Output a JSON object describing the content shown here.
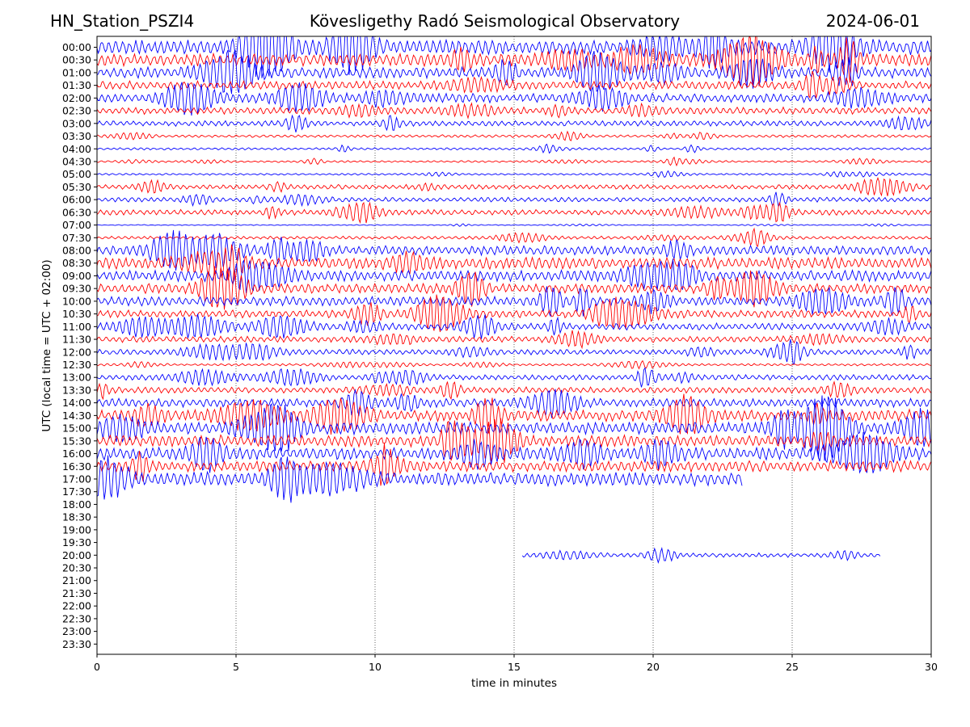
{
  "header": {
    "station": "HN_Station_PSZI4",
    "observatory": "Kövesligethy Radó Seismological Observatory",
    "date": "2024-06-01"
  },
  "chart_data": {
    "type": "line",
    "title": "Kövesligethy Radó Seismological Observatory",
    "xlabel": "time in minutes",
    "ylabel": "UTC (local time = UTC + 02:00)",
    "xlim": [
      0,
      30
    ],
    "xticks": [
      0,
      5,
      10,
      15,
      20,
      25,
      30
    ],
    "grid": "vertical dotted lines at x ticks",
    "colors": [
      "#0000ff",
      "#ff0000"
    ],
    "row_labels": [
      "00:00",
      "00:30",
      "01:00",
      "01:30",
      "02:00",
      "02:30",
      "03:00",
      "03:30",
      "04:00",
      "04:30",
      "05:00",
      "05:30",
      "06:00",
      "06:30",
      "07:00",
      "07:30",
      "08:00",
      "08:30",
      "09:00",
      "09:30",
      "10:00",
      "10:30",
      "11:00",
      "11:30",
      "12:00",
      "12:30",
      "13:00",
      "13:30",
      "14:00",
      "14:30",
      "15:00",
      "15:30",
      "16:00",
      "16:30",
      "17:00",
      "17:30",
      "18:00",
      "18:30",
      "19:00",
      "19:30",
      "20:00",
      "20:30",
      "21:00",
      "21:30",
      "22:00",
      "22:30",
      "23:00",
      "23:30"
    ],
    "rows": [
      {
        "label": "00:00",
        "color": "#0000ff",
        "amplitude": 0.95,
        "start": 0,
        "end": 30
      },
      {
        "label": "00:30",
        "color": "#ff0000",
        "amplitude": 0.8,
        "start": 0,
        "end": 30
      },
      {
        "label": "01:00",
        "color": "#0000ff",
        "amplitude": 0.7,
        "start": 0,
        "end": 30
      },
      {
        "label": "01:30",
        "color": "#ff0000",
        "amplitude": 0.55,
        "start": 0,
        "end": 30
      },
      {
        "label": "02:00",
        "color": "#0000ff",
        "amplitude": 0.6,
        "start": 0,
        "end": 30
      },
      {
        "label": "02:30",
        "color": "#ff0000",
        "amplitude": 0.45,
        "start": 0,
        "end": 30
      },
      {
        "label": "03:00",
        "color": "#0000ff",
        "amplitude": 0.35,
        "start": 0,
        "end": 30
      },
      {
        "label": "03:30",
        "color": "#ff0000",
        "amplitude": 0.18,
        "start": 0,
        "end": 30
      },
      {
        "label": "04:00",
        "color": "#0000ff",
        "amplitude": 0.15,
        "start": 0,
        "end": 30
      },
      {
        "label": "04:30",
        "color": "#ff0000",
        "amplitude": 0.12,
        "start": 0,
        "end": 30
      },
      {
        "label": "05:00",
        "color": "#0000ff",
        "amplitude": 0.12,
        "start": 0,
        "end": 30
      },
      {
        "label": "05:30",
        "color": "#ff0000",
        "amplitude": 0.3,
        "start": 0,
        "end": 30
      },
      {
        "label": "06:00",
        "color": "#0000ff",
        "amplitude": 0.3,
        "start": 0,
        "end": 30
      },
      {
        "label": "06:30",
        "color": "#ff0000",
        "amplitude": 0.35,
        "start": 0,
        "end": 30
      },
      {
        "label": "07:00",
        "color": "#0000ff",
        "amplitude": 0.06,
        "start": 0,
        "end": 30
      },
      {
        "label": "07:30",
        "color": "#ff0000",
        "amplitude": 0.2,
        "start": 0,
        "end": 30
      },
      {
        "label": "08:00",
        "color": "#0000ff",
        "amplitude": 0.6,
        "start": 0,
        "end": 30
      },
      {
        "label": "08:30",
        "color": "#ff0000",
        "amplitude": 0.75,
        "start": 0,
        "end": 30
      },
      {
        "label": "09:00",
        "color": "#0000ff",
        "amplitude": 0.7,
        "start": 0,
        "end": 30
      },
      {
        "label": "09:30",
        "color": "#ff0000",
        "amplitude": 0.65,
        "start": 0,
        "end": 30
      },
      {
        "label": "10:00",
        "color": "#0000ff",
        "amplitude": 0.6,
        "start": 0,
        "end": 30
      },
      {
        "label": "10:30",
        "color": "#ff0000",
        "amplitude": 0.5,
        "start": 0,
        "end": 30
      },
      {
        "label": "11:00",
        "color": "#0000ff",
        "amplitude": 0.45,
        "start": 0,
        "end": 30
      },
      {
        "label": "11:30",
        "color": "#ff0000",
        "amplitude": 0.4,
        "start": 0,
        "end": 30
      },
      {
        "label": "12:00",
        "color": "#0000ff",
        "amplitude": 0.35,
        "start": 0,
        "end": 30
      },
      {
        "label": "12:30",
        "color": "#ff0000",
        "amplitude": 0.15,
        "start": 0,
        "end": 30
      },
      {
        "label": "13:00",
        "color": "#0000ff",
        "amplitude": 0.35,
        "start": 0,
        "end": 30
      },
      {
        "label": "13:30",
        "color": "#ff0000",
        "amplitude": 0.4,
        "start": 0,
        "end": 30
      },
      {
        "label": "14:00",
        "color": "#0000ff",
        "amplitude": 0.55,
        "start": 0,
        "end": 30
      },
      {
        "label": "14:30",
        "color": "#ff0000",
        "amplitude": 0.75,
        "start": 0,
        "end": 30
      },
      {
        "label": "15:00",
        "color": "#0000ff",
        "amplitude": 0.8,
        "start": 0,
        "end": 30
      },
      {
        "label": "15:30",
        "color": "#ff0000",
        "amplitude": 0.75,
        "start": 0,
        "end": 30
      },
      {
        "label": "16:00",
        "color": "#0000ff",
        "amplitude": 0.8,
        "start": 0,
        "end": 30
      },
      {
        "label": "16:30",
        "color": "#ff0000",
        "amplitude": 0.7,
        "start": 0,
        "end": 30
      },
      {
        "label": "17:00",
        "color": "#0000ff",
        "amplitude": 0.9,
        "start": 0,
        "end": 23.2
      },
      {
        "label": "17:30",
        "color": "#ff0000",
        "amplitude": 0,
        "start": 0,
        "end": 0
      },
      {
        "label": "18:00",
        "color": "#0000ff",
        "amplitude": 0,
        "start": 0,
        "end": 0
      },
      {
        "label": "18:30",
        "color": "#ff0000",
        "amplitude": 0,
        "start": 0,
        "end": 0
      },
      {
        "label": "19:00",
        "color": "#0000ff",
        "amplitude": 0,
        "start": 0,
        "end": 0
      },
      {
        "label": "19:30",
        "color": "#ff0000",
        "amplitude": 0,
        "start": 0,
        "end": 0
      },
      {
        "label": "20:00",
        "color": "#0000ff",
        "amplitude": 0.28,
        "start": 15.3,
        "end": 28.2
      },
      {
        "label": "20:30",
        "color": "#ff0000",
        "amplitude": 0,
        "start": 0,
        "end": 0
      },
      {
        "label": "21:00",
        "color": "#0000ff",
        "amplitude": 0,
        "start": 0,
        "end": 0
      },
      {
        "label": "21:30",
        "color": "#ff0000",
        "amplitude": 0,
        "start": 0,
        "end": 0
      },
      {
        "label": "22:00",
        "color": "#0000ff",
        "amplitude": 0,
        "start": 0,
        "end": 0
      },
      {
        "label": "22:30",
        "color": "#ff0000",
        "amplitude": 0,
        "start": 0,
        "end": 0
      },
      {
        "label": "23:00",
        "color": "#0000ff",
        "amplitude": 0,
        "start": 0,
        "end": 0
      },
      {
        "label": "23:30",
        "color": "#ff0000",
        "amplitude": 0,
        "start": 0,
        "end": 0
      }
    ]
  }
}
